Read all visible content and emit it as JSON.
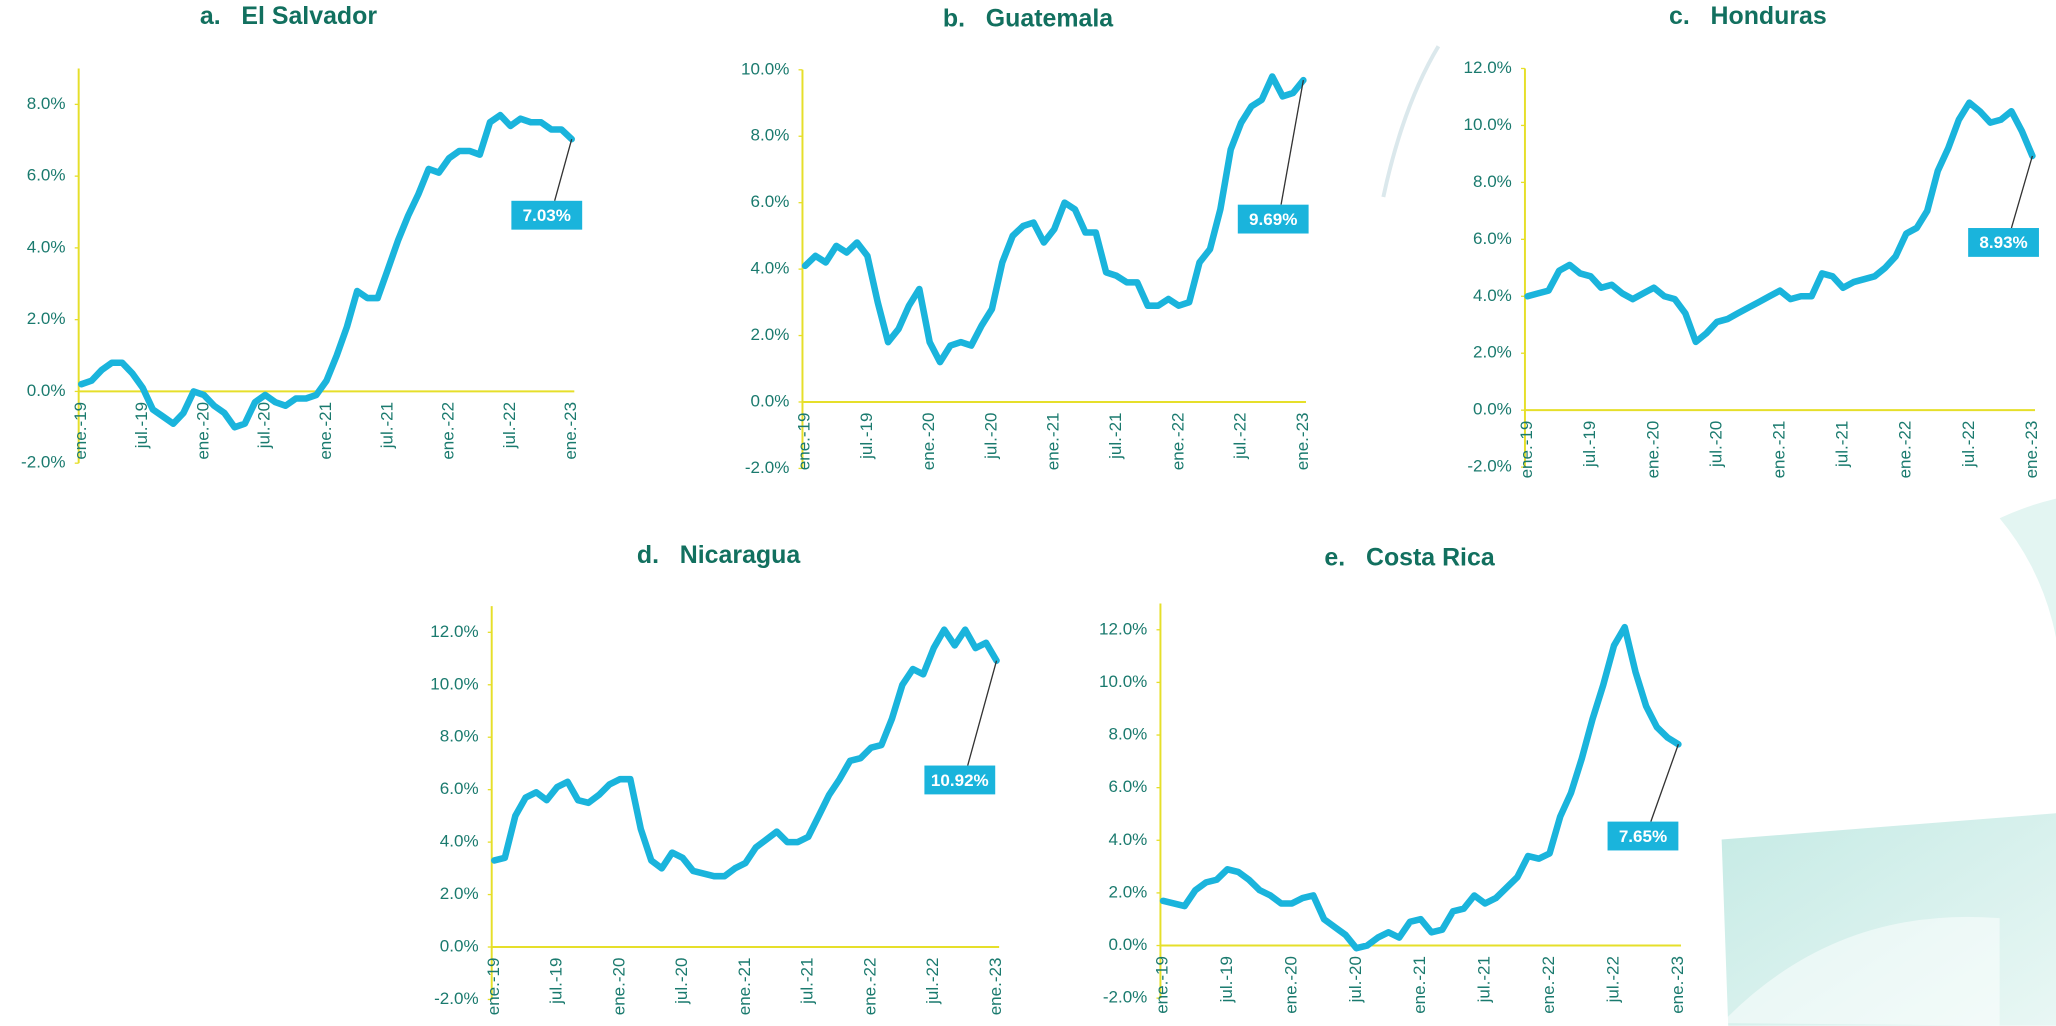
{
  "chart_data": [
    {
      "type": "line",
      "title": "a.   El Salvador",
      "categories": [
        "ene.-19",
        null,
        null,
        null,
        null,
        null,
        "jul.-19",
        null,
        null,
        null,
        null,
        null,
        "ene.-20",
        null,
        null,
        null,
        null,
        null,
        "jul.-20",
        null,
        null,
        null,
        null,
        null,
        "ene.-21",
        null,
        null,
        null,
        null,
        null,
        "jul.-21",
        null,
        null,
        null,
        null,
        null,
        "ene.-22",
        null,
        null,
        null,
        null,
        null,
        "jul.-22",
        null,
        null,
        null,
        null,
        null,
        "ene.-23"
      ],
      "values": [
        0.2,
        0.3,
        0.6,
        0.8,
        0.8,
        0.5,
        0.1,
        -0.5,
        -0.7,
        -0.9,
        -0.6,
        0.0,
        -0.1,
        -0.4,
        -0.6,
        -1.0,
        -0.9,
        -0.3,
        -0.1,
        -0.3,
        -0.4,
        -0.2,
        -0.2,
        -0.1,
        0.3,
        1.0,
        1.8,
        2.8,
        2.6,
        2.6,
        3.4,
        4.2,
        4.9,
        5.5,
        6.2,
        6.1,
        6.5,
        6.7,
        6.7,
        6.6,
        7.5,
        7.7,
        7.4,
        7.6,
        7.5,
        7.5,
        7.3,
        7.3,
        7.03
      ],
      "value_labels": [
        null,
        null,
        null,
        null,
        null,
        null,
        null,
        null,
        null,
        null,
        null,
        null,
        null,
        null,
        null,
        null,
        null,
        null,
        null,
        null,
        null,
        null,
        null,
        null,
        null,
        null,
        null,
        null,
        null,
        null,
        null,
        null,
        null,
        null,
        null,
        null,
        null,
        null,
        null,
        null,
        null,
        null,
        null,
        null,
        null,
        null,
        null,
        null,
        "7.03%"
      ],
      "color": "#1ab4dc",
      "label_color": "#1ab4dc",
      "axis_color": "#e6df2a",
      "ylim": [
        -2,
        9
      ],
      "yticks": [
        {
          "value": -2,
          "label": "-2.0%"
        },
        {
          "value": 0,
          "label": "0.0%"
        },
        {
          "value": 2,
          "label": "2.0%"
        },
        {
          "value": 4,
          "label": "4.0%"
        },
        {
          "value": 6,
          "label": "6.0%"
        },
        {
          "value": 8,
          "label": "8.0%"
        }
      ],
      "grid": false
    },
    {
      "type": "line",
      "title": "b.   Guatemala",
      "categories": [
        "ene.-19",
        null,
        null,
        null,
        null,
        null,
        "jul.-19",
        null,
        null,
        null,
        null,
        null,
        "ene.-20",
        null,
        null,
        null,
        null,
        null,
        "jul.-20",
        null,
        null,
        null,
        null,
        null,
        "ene.-21",
        null,
        null,
        null,
        null,
        null,
        "jul.-21",
        null,
        null,
        null,
        null,
        null,
        "ene.-22",
        null,
        null,
        null,
        null,
        null,
        "jul.-22",
        null,
        null,
        null,
        null,
        null,
        "ene.-23"
      ],
      "values": [
        4.1,
        4.4,
        4.2,
        4.7,
        4.5,
        4.8,
        4.4,
        3.0,
        1.8,
        2.2,
        2.9,
        3.4,
        1.8,
        1.2,
        1.7,
        1.8,
        1.7,
        2.3,
        2.8,
        4.2,
        5.0,
        5.3,
        5.4,
        4.8,
        5.2,
        6.0,
        5.8,
        5.1,
        5.1,
        3.9,
        3.8,
        3.6,
        3.6,
        2.9,
        2.9,
        3.1,
        2.9,
        3.0,
        4.2,
        4.6,
        5.8,
        7.6,
        8.4,
        8.9,
        9.1,
        9.8,
        9.2,
        9.3,
        9.69
      ],
      "value_labels": [
        null,
        null,
        null,
        null,
        null,
        null,
        null,
        null,
        null,
        null,
        null,
        null,
        null,
        null,
        null,
        null,
        null,
        null,
        null,
        null,
        null,
        null,
        null,
        null,
        null,
        null,
        null,
        null,
        null,
        null,
        null,
        null,
        null,
        null,
        null,
        null,
        null,
        null,
        null,
        null,
        null,
        null,
        null,
        null,
        null,
        null,
        null,
        null,
        "9.69%"
      ],
      "color": "#1ab4dc",
      "label_color": "#1ab4dc",
      "axis_color": "#e6df2a",
      "ylim": [
        -2,
        10
      ],
      "yticks": [
        {
          "value": -2,
          "label": "-2.0%"
        },
        {
          "value": 0,
          "label": "0.0%"
        },
        {
          "value": 2,
          "label": "2.0%"
        },
        {
          "value": 4,
          "label": "4.0%"
        },
        {
          "value": 6,
          "label": "6.0%"
        },
        {
          "value": 8,
          "label": "8.0%"
        },
        {
          "value": 10,
          "label": "10.0%"
        }
      ],
      "grid": false
    },
    {
      "type": "line",
      "title": "c.   Honduras",
      "categories": [
        "ene.-19",
        null,
        null,
        null,
        null,
        null,
        "jul.-19",
        null,
        null,
        null,
        null,
        null,
        "ene.-20",
        null,
        null,
        null,
        null,
        null,
        "jul.-20",
        null,
        null,
        null,
        null,
        null,
        "ene.-21",
        null,
        null,
        null,
        null,
        null,
        "jul.-21",
        null,
        null,
        null,
        null,
        null,
        "ene.-22",
        null,
        null,
        null,
        null,
        null,
        "jul.-22",
        null,
        null,
        null,
        null,
        null,
        "ene.-23"
      ],
      "values": [
        4.0,
        4.1,
        4.2,
        4.9,
        5.1,
        4.8,
        4.7,
        4.3,
        4.4,
        4.1,
        3.9,
        4.1,
        4.3,
        4.0,
        3.9,
        3.4,
        2.4,
        2.7,
        3.1,
        3.2,
        3.4,
        3.6,
        3.8,
        4.0,
        4.2,
        3.9,
        4.0,
        4.0,
        4.8,
        4.7,
        4.3,
        4.5,
        4.6,
        4.7,
        5.0,
        5.4,
        6.2,
        6.4,
        7.0,
        8.4,
        9.2,
        10.2,
        10.8,
        10.5,
        10.1,
        10.2,
        10.5,
        9.8,
        8.93
      ],
      "value_labels": [
        null,
        null,
        null,
        null,
        null,
        null,
        null,
        null,
        null,
        null,
        null,
        null,
        null,
        null,
        null,
        null,
        null,
        null,
        null,
        null,
        null,
        null,
        null,
        null,
        null,
        null,
        null,
        null,
        null,
        null,
        null,
        null,
        null,
        null,
        null,
        null,
        null,
        null,
        null,
        null,
        null,
        null,
        null,
        null,
        null,
        null,
        null,
        null,
        "8.93%"
      ],
      "color": "#1ab4dc",
      "label_color": "#1ab4dc",
      "axis_color": "#e6df2a",
      "ylim": [
        -2,
        12
      ],
      "yticks": [
        {
          "value": -2,
          "label": "-2.0%"
        },
        {
          "value": 0,
          "label": "0.0%"
        },
        {
          "value": 2,
          "label": "2.0%"
        },
        {
          "value": 4,
          "label": "4.0%"
        },
        {
          "value": 6,
          "label": "6.0%"
        },
        {
          "value": 8,
          "label": "8.0%"
        },
        {
          "value": 10,
          "label": "10.0%"
        },
        {
          "value": 12,
          "label": "12.0%"
        }
      ],
      "grid": false
    },
    {
      "type": "line",
      "title": "d.   Nicaragua",
      "categories": [
        "ene.-19",
        null,
        null,
        null,
        null,
        null,
        "jul.-19",
        null,
        null,
        null,
        null,
        null,
        "ene.-20",
        null,
        null,
        null,
        null,
        null,
        "jul.-20",
        null,
        null,
        null,
        null,
        null,
        "ene.-21",
        null,
        null,
        null,
        null,
        null,
        "jul.-21",
        null,
        null,
        null,
        null,
        null,
        "ene.-22",
        null,
        null,
        null,
        null,
        null,
        "jul.-22",
        null,
        null,
        null,
        null,
        null,
        "ene.-23"
      ],
      "values": [
        3.3,
        3.4,
        5.0,
        5.7,
        5.9,
        5.6,
        6.1,
        6.3,
        5.6,
        5.5,
        5.8,
        6.2,
        6.4,
        6.4,
        4.5,
        3.3,
        3.0,
        3.6,
        3.4,
        2.9,
        2.8,
        2.7,
        2.7,
        3.0,
        3.2,
        3.8,
        4.1,
        4.4,
        4.0,
        4.0,
        4.2,
        5.0,
        5.8,
        6.4,
        7.1,
        7.2,
        7.6,
        7.7,
        8.7,
        10.0,
        10.6,
        10.4,
        11.4,
        12.1,
        11.5,
        12.1,
        11.4,
        11.6,
        10.92
      ],
      "value_labels": [
        null,
        null,
        null,
        null,
        null,
        null,
        null,
        null,
        null,
        null,
        null,
        null,
        null,
        null,
        null,
        null,
        null,
        null,
        null,
        null,
        null,
        null,
        null,
        null,
        null,
        null,
        null,
        null,
        null,
        null,
        null,
        null,
        null,
        null,
        null,
        null,
        null,
        null,
        null,
        null,
        null,
        null,
        null,
        null,
        null,
        null,
        null,
        null,
        "10.92%"
      ],
      "color": "#1ab4dc",
      "label_color": "#1ab4dc",
      "axis_color": "#e6df2a",
      "ylim": [
        -2,
        13
      ],
      "yticks": [
        {
          "value": -2,
          "label": "-2.0%"
        },
        {
          "value": 0,
          "label": "0.0%"
        },
        {
          "value": 2,
          "label": "2.0%"
        },
        {
          "value": 4,
          "label": "4.0%"
        },
        {
          "value": 6,
          "label": "6.0%"
        },
        {
          "value": 8,
          "label": "8.0%"
        },
        {
          "value": 10,
          "label": "10.0%"
        },
        {
          "value": 12,
          "label": "12.0%"
        }
      ],
      "grid": false
    },
    {
      "type": "line",
      "title": "e.   Costa Rica",
      "categories": [
        "ene.-19",
        null,
        null,
        null,
        null,
        null,
        "jul.-19",
        null,
        null,
        null,
        null,
        null,
        "ene.-20",
        null,
        null,
        null,
        null,
        null,
        "jul.-20",
        null,
        null,
        null,
        null,
        null,
        "ene.-21",
        null,
        null,
        null,
        null,
        null,
        "jul.-21",
        null,
        null,
        null,
        null,
        null,
        "ene.-22",
        null,
        null,
        null,
        null,
        null,
        "jul.-22",
        null,
        null,
        null,
        null,
        null,
        "ene.-23"
      ],
      "values": [
        1.7,
        1.6,
        1.5,
        2.1,
        2.4,
        2.5,
        2.9,
        2.8,
        2.5,
        2.1,
        1.9,
        1.6,
        1.6,
        1.8,
        1.9,
        1.0,
        0.7,
        0.4,
        -0.1,
        0.0,
        0.3,
        0.5,
        0.3,
        0.9,
        1.0,
        0.5,
        0.6,
        1.3,
        1.4,
        1.9,
        1.6,
        1.8,
        2.2,
        2.6,
        3.4,
        3.3,
        3.5,
        4.9,
        5.8,
        7.1,
        8.6,
        9.9,
        11.4,
        12.1,
        10.4,
        9.1,
        8.3,
        7.9,
        7.65
      ],
      "value_labels": [
        null,
        null,
        null,
        null,
        null,
        null,
        null,
        null,
        null,
        null,
        null,
        null,
        null,
        null,
        null,
        null,
        null,
        null,
        null,
        null,
        null,
        null,
        null,
        null,
        null,
        null,
        null,
        null,
        null,
        null,
        null,
        null,
        null,
        null,
        null,
        null,
        null,
        null,
        null,
        null,
        null,
        null,
        null,
        null,
        null,
        null,
        null,
        null,
        "7.65%"
      ],
      "color": "#1ab4dc",
      "label_color": "#1ab4dc",
      "axis_color": "#e6df2a",
      "ylim": [
        -2,
        13
      ],
      "yticks": [
        {
          "value": -2,
          "label": "-2.0%"
        },
        {
          "value": 0,
          "label": "0.0%"
        },
        {
          "value": 2,
          "label": "2.0%"
        },
        {
          "value": 4,
          "label": "4.0%"
        },
        {
          "value": 6,
          "label": "6.0%"
        },
        {
          "value": 8,
          "label": "8.0%"
        },
        {
          "value": 10,
          "label": "10.0%"
        },
        {
          "value": 12,
          "label": "12.0%"
        }
      ],
      "grid": false
    }
  ]
}
